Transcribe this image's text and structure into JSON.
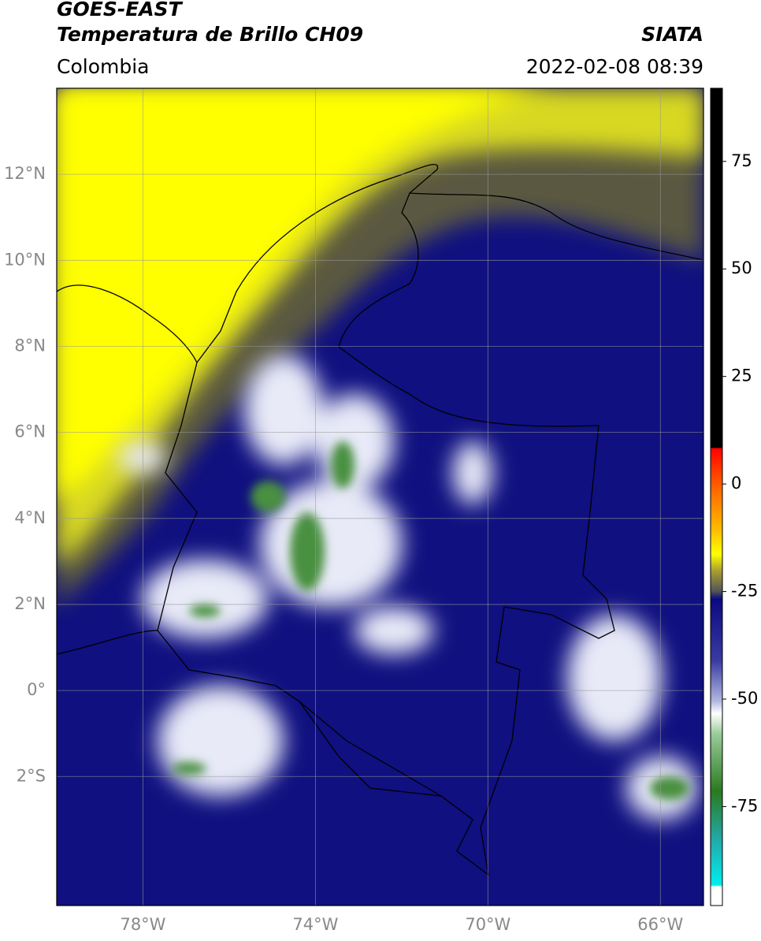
{
  "header": {
    "satellite": "GOES-EAST",
    "product": "Temperatura de Brillo CH09",
    "source": "SIATA",
    "region": "Colombia",
    "datetime": "2022-02-08 08:39"
  },
  "map": {
    "xlim": [
      -80,
      -65
    ],
    "ylim": [
      -5,
      14
    ],
    "xticks": [
      {
        "value": -78,
        "label": "78°W"
      },
      {
        "value": -74,
        "label": "74°W"
      },
      {
        "value": -70,
        "label": "70°W"
      },
      {
        "value": -66,
        "label": "66°W"
      }
    ],
    "yticks": [
      {
        "value": 12,
        "label": "12°N"
      },
      {
        "value": 10,
        "label": "10°N"
      },
      {
        "value": 8,
        "label": "8°N"
      },
      {
        "value": 6,
        "label": "6°N"
      },
      {
        "value": 4,
        "label": "4°N"
      },
      {
        "value": 2,
        "label": "2°N"
      },
      {
        "value": 0,
        "label": "0°"
      },
      {
        "value": -2,
        "label": "2°S"
      }
    ]
  },
  "colorbar": {
    "lim": [
      -98,
      92
    ],
    "ticks": [
      75,
      50,
      25,
      0,
      -25,
      -50,
      -75
    ]
  }
}
